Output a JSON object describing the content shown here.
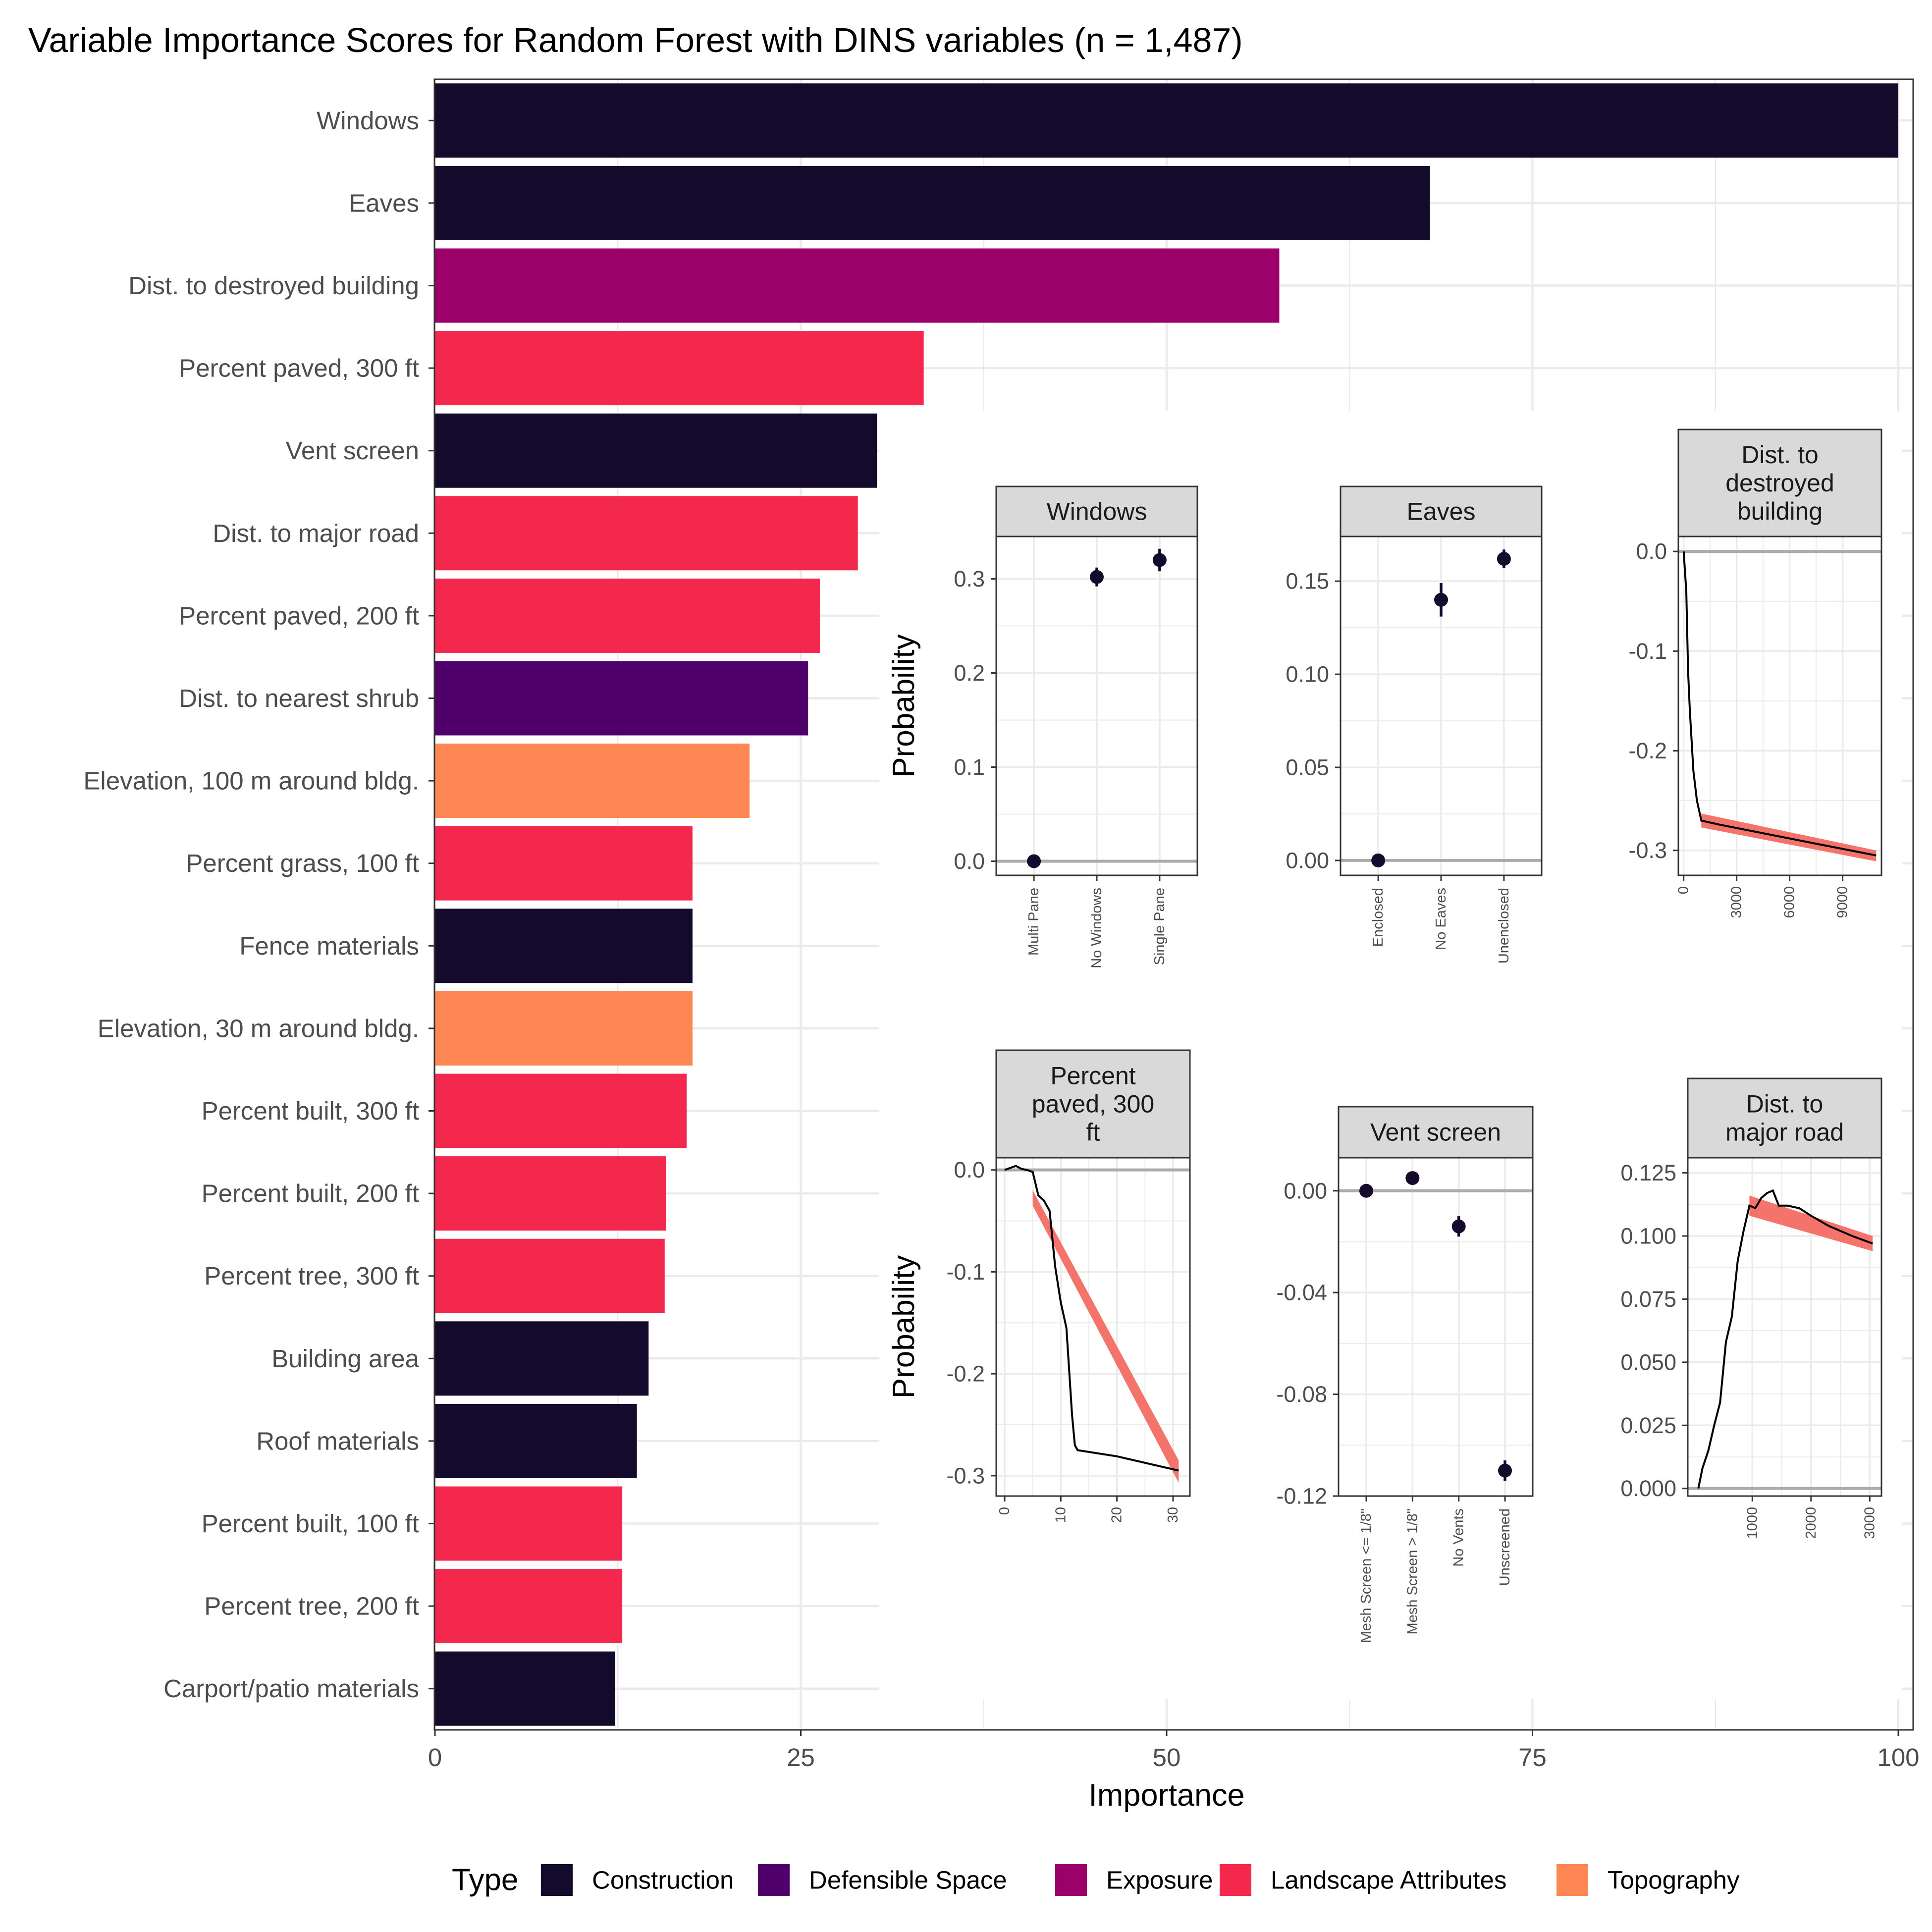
{
  "chart_data": [
    {
      "type": "bar",
      "orientation": "horizontal",
      "title": "Variable Importance Scores for Random Forest with DINS variables (n = 1,487)",
      "xlabel": "Importance",
      "ylabel": "",
      "xlim": [
        0,
        100
      ],
      "xticks": [
        0,
        25,
        50,
        75,
        100
      ],
      "grid": true,
      "legend": {
        "title": "Type",
        "position": "bottom",
        "entries": [
          {
            "label": "Construction",
            "color": "#140a2c"
          },
          {
            "label": "Defensible Space",
            "color": "#4f006b"
          },
          {
            "label": "Exposure",
            "color": "#9c006b"
          },
          {
            "label": "Landscape Attributes",
            "color": "#f4284c"
          },
          {
            "label": "Topography",
            "color": "#fe8753"
          }
        ]
      },
      "categories": [
        "Windows",
        "Eaves",
        "Dist. to destroyed building",
        "Percent paved, 300 ft",
        "Vent screen",
        "Dist. to major road",
        "Percent paved, 200 ft",
        "Dist. to nearest shrub",
        "Elevation, 100 m around bldg.",
        "Percent grass, 100 ft",
        "Fence materials",
        "Elevation, 30 m around bldg.",
        "Percent built, 300 ft",
        "Percent built, 200 ft",
        "Percent tree, 300 ft",
        "Building area",
        "Roof materials",
        "Percent built, 100 ft",
        "Percent tree, 200 ft",
        "Carport/patio materials"
      ],
      "values": [
        100,
        68,
        57.7,
        33.4,
        30.2,
        28.9,
        26.3,
        25.5,
        21.5,
        17.6,
        17.6,
        17.6,
        17.2,
        15.8,
        15.7,
        14.6,
        13.8,
        12.8,
        12.8,
        12.3
      ],
      "types": [
        "Construction",
        "Construction",
        "Exposure",
        "Landscape Attributes",
        "Construction",
        "Landscape Attributes",
        "Landscape Attributes",
        "Defensible Space",
        "Topography",
        "Landscape Attributes",
        "Construction",
        "Topography",
        "Landscape Attributes",
        "Landscape Attributes",
        "Landscape Attributes",
        "Construction",
        "Construction",
        "Landscape Attributes",
        "Landscape Attributes",
        "Construction"
      ]
    },
    {
      "type": "scatter",
      "title": "Windows",
      "ylabel": "Probability",
      "ylim": [
        -0.015,
        0.345
      ],
      "yticks": [
        0.0,
        0.1,
        0.2,
        0.3
      ],
      "ytick_labels": [
        "0.0",
        "0.1",
        "0.2",
        "0.3"
      ],
      "categories": [
        "Multi Pane",
        "No Windows",
        "Single Pane"
      ],
      "values": [
        0.0,
        0.302,
        0.32
      ],
      "error": [
        0,
        0.01,
        0.012
      ],
      "reference_line": 0
    },
    {
      "type": "scatter",
      "title": "Eaves",
      "ylim": [
        -0.008,
        0.174
      ],
      "yticks": [
        0.0,
        0.05,
        0.1,
        0.15
      ],
      "ytick_labels": [
        "0.00",
        "0.05",
        "0.10",
        "0.15"
      ],
      "categories": [
        "Enclosed",
        "No Eaves",
        "Unenclosed"
      ],
      "values": [
        0.0,
        0.14,
        0.162
      ],
      "error": [
        0,
        0.009,
        0.005
      ],
      "reference_line": 0
    },
    {
      "type": "line",
      "title": "Dist. to destroyed building",
      "title_lines": [
        "Dist. to",
        "destroyed",
        "building"
      ],
      "xlim": [
        -300,
        11200
      ],
      "ylim": [
        -0.325,
        0.015
      ],
      "xticks": [
        0,
        3000,
        6000,
        9000
      ],
      "xtick_labels": [
        "0",
        "3000",
        "6000",
        "9000"
      ],
      "yticks": [
        0.0,
        -0.1,
        -0.2,
        -0.3
      ],
      "ytick_labels": [
        "0.0",
        "-0.1",
        "-0.2",
        "-0.3"
      ],
      "x": [
        0,
        150,
        250,
        350,
        550,
        750,
        1000,
        2000,
        4000,
        6000,
        8000,
        10900
      ],
      "y": [
        0.0,
        -0.04,
        -0.12,
        -0.16,
        -0.22,
        -0.25,
        -0.27,
        -0.274,
        -0.281,
        -0.288,
        -0.295,
        -0.305
      ],
      "band": {
        "x_start": 1000,
        "x_end": 10900,
        "lower": [
          -0.277,
          -0.311
        ],
        "upper": [
          -0.263,
          -0.3
        ]
      },
      "reference_line": 0
    },
    {
      "type": "line",
      "title": "Percent paved, 300 ft",
      "title_lines": [
        "Percent",
        "paved, 300",
        "ft"
      ],
      "ylabel": "Probability",
      "xlim": [
        -1.5,
        33
      ],
      "ylim": [
        -0.32,
        0.012
      ],
      "xticks": [
        0,
        10,
        20,
        30
      ],
      "xtick_labels": [
        "0",
        "10",
        "20",
        "30"
      ],
      "yticks": [
        0.0,
        -0.1,
        -0.2,
        -0.3
      ],
      "ytick_labels": [
        "0.0",
        "-0.1",
        "-0.2",
        "-0.3"
      ],
      "x": [
        0,
        1,
        2,
        3,
        4,
        5,
        6,
        7,
        8,
        9,
        10,
        11,
        12,
        12.5,
        13,
        20,
        31
      ],
      "y": [
        0.0,
        0.002,
        0.004,
        0.001,
        0.0,
        -0.002,
        -0.025,
        -0.03,
        -0.04,
        -0.095,
        -0.13,
        -0.155,
        -0.24,
        -0.27,
        -0.275,
        -0.281,
        -0.295
      ],
      "band": {
        "x_start": 5,
        "x_end": 31,
        "lower": [
          -0.035,
          -0.307
        ],
        "upper": [
          -0.02,
          -0.285
        ]
      },
      "reference_line": 0
    },
    {
      "type": "scatter",
      "title": "Vent screen",
      "ylim": [
        -0.12,
        0.013
      ],
      "yticks": [
        0.0,
        -0.04,
        -0.08,
        -0.12
      ],
      "ytick_labels": [
        "0.00",
        "-0.04",
        "-0.08",
        "-0.12"
      ],
      "categories": [
        "Mesh Screen <= 1/8\"",
        "Mesh Screen > 1/8\"",
        "No Vents",
        "Unscreened"
      ],
      "values": [
        0.0,
        0.005,
        -0.014,
        -0.11
      ],
      "error": [
        0,
        0,
        0.004,
        0.004
      ],
      "reference_line": 0
    },
    {
      "type": "line",
      "title": "Dist. to major road",
      "title_lines": [
        "Dist. to",
        "major road"
      ],
      "xlim": [
        -100,
        3200
      ],
      "ylim": [
        -0.003,
        0.131
      ],
      "xticks": [
        1000,
        2000,
        3000
      ],
      "xtick_labels": [
        "1000",
        "2000",
        "3000"
      ],
      "yticks": [
        0.0,
        0.025,
        0.05,
        0.075,
        0.1,
        0.125
      ],
      "ytick_labels": [
        "0.000",
        "0.025",
        "0.050",
        "0.075",
        "0.100",
        "0.125"
      ],
      "x": [
        80,
        150,
        250,
        350,
        450,
        550,
        650,
        750,
        850,
        950,
        1050,
        1150,
        1250,
        1350,
        1450,
        1600,
        1800,
        2000,
        2300,
        2700,
        3050
      ],
      "y": [
        0.0,
        0.008,
        0.015,
        0.025,
        0.034,
        0.058,
        0.068,
        0.09,
        0.102,
        0.112,
        0.111,
        0.115,
        0.117,
        0.118,
        0.112,
        0.112,
        0.111,
        0.108,
        0.104,
        0.1,
        0.097
      ],
      "band": {
        "x_start": 950,
        "x_end": 3050,
        "lower": [
          0.108,
          0.094
        ],
        "upper": [
          0.116,
          0.1
        ]
      },
      "reference_line": 0
    }
  ]
}
